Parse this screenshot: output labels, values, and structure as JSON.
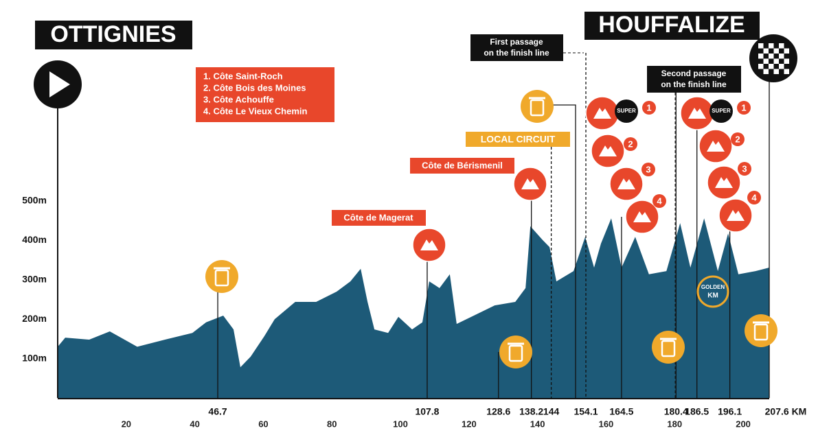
{
  "header": {
    "start": "OTTIGNIES",
    "finish": "HOUFFALIZE"
  },
  "climbs_legend": [
    "1. Côte Saint-Roch",
    "2. Côte Bois des Moines",
    "3. Côte Achouffe",
    "4. Côte Le Vieux Chemin"
  ],
  "annotations": {
    "first_passage": [
      "First passage",
      "on the finish line"
    ],
    "second_passage": [
      "Second passage",
      "on the finish line"
    ],
    "local_circuit": "LOCAL CIRCUIT",
    "climb_berismenil": "Côte de Bérismenil",
    "climb_magerat": "Côte de Magerat",
    "golden_km": [
      "GOLDEN",
      "KM"
    ],
    "super": "SUPER",
    "badges": [
      "1",
      "2",
      "3",
      "4"
    ]
  },
  "chart_data": {
    "type": "area",
    "color": "#1d5a78",
    "x": [
      0,
      2.2,
      9.2,
      15.2,
      23.2,
      31.3,
      39.3,
      43.3,
      48.3,
      51.3,
      53.3,
      56.3,
      60.3,
      63.3,
      69.3,
      75.4,
      81.4,
      85.4,
      88.4,
      90.4,
      92.4,
      96.4,
      99.4,
      103.4,
      106.4,
      108.4,
      111.4,
      114.4,
      116.4,
      121.4,
      127.5,
      133.5,
      136.5,
      137.9,
      141.5,
      143.5,
      145.5,
      150.5,
      153.9,
      156.5,
      158.5,
      161.5,
      164.5,
      168.5,
      172.5,
      177.6,
      181.6,
      184.6,
      188.6,
      192.6,
      195.6,
      198.6,
      203.6,
      207.6
    ],
    "values": [
      130,
      153,
      148,
      169,
      130,
      148,
      165,
      192,
      209,
      174,
      78,
      105,
      157,
      200,
      244,
      244,
      270,
      296,
      328,
      244,
      174,
      165,
      206,
      174,
      192,
      296,
      279,
      314,
      188,
      209,
      235,
      244,
      279,
      436,
      401,
      383,
      296,
      322,
      409,
      331,
      392,
      456,
      331,
      409,
      314,
      322,
      444,
      331,
      456,
      322,
      418,
      314,
      322,
      331
    ],
    "xlim": [
      0,
      207.6
    ],
    "ylim": [
      0,
      500
    ],
    "yticks": [
      {
        "value": 100,
        "label": "100m"
      },
      {
        "value": 200,
        "label": "200m"
      },
      {
        "value": 300,
        "label": "300m"
      },
      {
        "value": 400,
        "label": "400m"
      },
      {
        "value": 500,
        "label": "500m"
      }
    ],
    "xticks": [
      20,
      40,
      60,
      80,
      100,
      120,
      140,
      160,
      180,
      200
    ],
    "km_markers": [
      46.7,
      107.8,
      128.6,
      138.2,
      144,
      154.1,
      164.5,
      180.4,
      186.5,
      196.1,
      {
        "value": 207.6,
        "label": "207.6 KM"
      }
    ]
  }
}
